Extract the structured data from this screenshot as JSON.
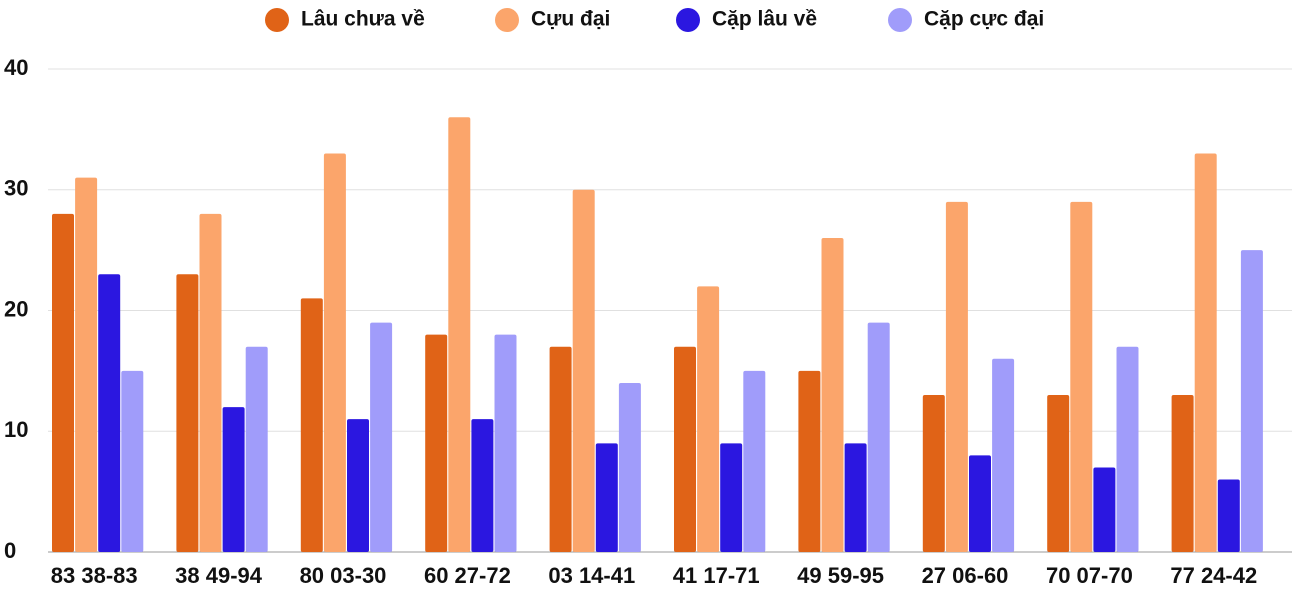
{
  "chart_data": {
    "type": "bar",
    "categories": [
      "83 38-83",
      "38 49-94",
      "80 03-30",
      "60 27-72",
      "03 14-41",
      "41 17-71",
      "49 59-95",
      "27 06-60",
      "70 07-70",
      "77 24-42"
    ],
    "series": [
      {
        "name": "Lâu chưa về",
        "color": "#e06317",
        "values": [
          28,
          23,
          21,
          18,
          17,
          17,
          15,
          13,
          13,
          13
        ]
      },
      {
        "name": "Cựu đại",
        "color": "#fba56b",
        "values": [
          31,
          28,
          33,
          36,
          30,
          22,
          26,
          29,
          29,
          33
        ]
      },
      {
        "name": "Cặp lâu về",
        "color": "#2b17e0",
        "values": [
          23,
          12,
          11,
          11,
          9,
          9,
          9,
          8,
          7,
          6
        ]
      },
      {
        "name": "Cặp cực đại",
        "color": "#a09cfa",
        "values": [
          15,
          17,
          19,
          18,
          14,
          15,
          19,
          16,
          17,
          25
        ]
      }
    ],
    "ylim": [
      0,
      40
    ],
    "yticks": [
      0,
      10,
      20,
      30,
      40
    ],
    "grid": true,
    "legend": "top"
  }
}
